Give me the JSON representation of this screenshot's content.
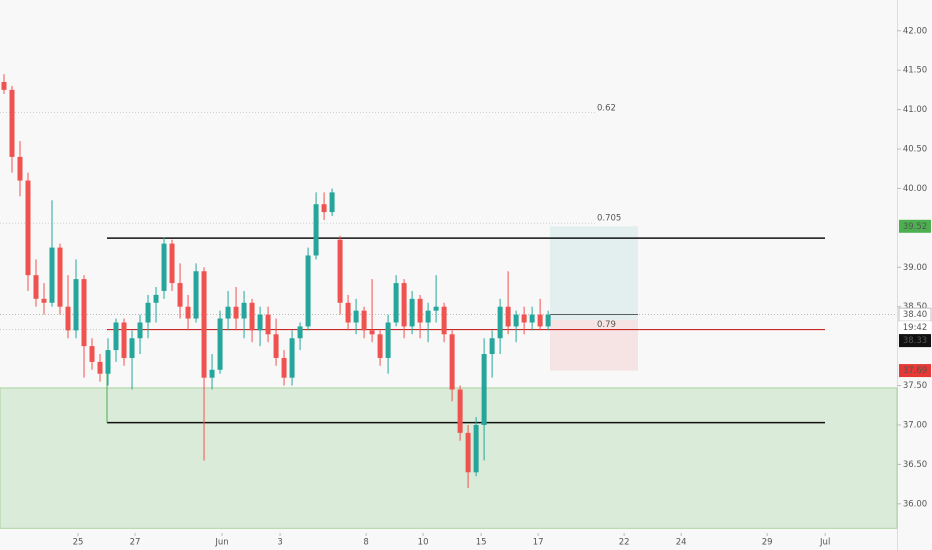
{
  "chart_data": {
    "type": "candlestick",
    "up_color": "#26a69a",
    "down_color": "#ef5350",
    "open": [
      41.35,
      41.25,
      40.4,
      40.1,
      38.9,
      38.6,
      38.55,
      39.25,
      38.5,
      38.2,
      38.85,
      38.0,
      37.8,
      37.65,
      37.95,
      38.3,
      37.85,
      38.1,
      38.3,
      38.55,
      38.7,
      39.3,
      38.8,
      38.5,
      38.35,
      38.95,
      37.6,
      37.7,
      38.35,
      38.5,
      38.35,
      38.55,
      38.2,
      38.4,
      38.15,
      37.85,
      37.6,
      38.1,
      38.25,
      39.15,
      39.8,
      39.7,
      39.35,
      38.55,
      38.3,
      38.45,
      38.2,
      38.15,
      37.85,
      38.3,
      38.8,
      38.25,
      38.6,
      38.3,
      38.45,
      38.5,
      38.15,
      37.45,
      36.9,
      36.4,
      37.0,
      37.9,
      38.1,
      38.5,
      38.25,
      38.4,
      38.3,
      38.4,
      38.25
    ],
    "high": [
      41.45,
      41.3,
      40.6,
      40.2,
      39.1,
      38.8,
      39.85,
      39.3,
      38.9,
      39.1,
      38.9,
      38.1,
      37.9,
      38.1,
      38.35,
      38.35,
      38.2,
      38.4,
      38.65,
      38.75,
      39.38,
      39.35,
      39.05,
      38.65,
      39.05,
      39.0,
      37.9,
      38.45,
      38.7,
      38.75,
      38.7,
      38.6,
      38.5,
      38.5,
      38.35,
      37.95,
      38.2,
      38.3,
      39.25,
      39.95,
      39.95,
      40.0,
      39.4,
      38.65,
      38.6,
      38.5,
      38.85,
      38.2,
      38.4,
      38.9,
      38.85,
      38.7,
      38.65,
      38.55,
      38.9,
      38.55,
      38.2,
      37.5,
      37.0,
      37.1,
      38.1,
      38.2,
      38.6,
      38.95,
      38.45,
      38.5,
      38.5,
      38.6,
      38.45
    ],
    "low": [
      41.2,
      40.2,
      39.9,
      38.7,
      38.5,
      38.4,
      38.5,
      38.4,
      38.1,
      38.1,
      37.6,
      37.7,
      37.55,
      37.5,
      37.8,
      37.75,
      37.45,
      37.9,
      38.1,
      38.3,
      38.6,
      38.7,
      38.35,
      38.2,
      38.3,
      36.55,
      37.45,
      37.65,
      38.2,
      38.2,
      38.1,
      38.05,
      38.0,
      38.05,
      37.75,
      37.5,
      37.5,
      37.95,
      38.2,
      39.1,
      39.6,
      39.65,
      38.4,
      38.2,
      38.15,
      38.1,
      38.05,
      37.75,
      37.65,
      38.25,
      38.1,
      38.15,
      38.1,
      38.05,
      38.3,
      38.05,
      37.3,
      36.8,
      36.2,
      36.35,
      36.55,
      37.6,
      37.9,
      38.15,
      38.05,
      38.15,
      38.2,
      38.2,
      38.2
    ],
    "close": [
      41.25,
      40.4,
      40.1,
      38.9,
      38.6,
      38.55,
      39.25,
      38.5,
      38.2,
      38.85,
      38.0,
      37.8,
      37.65,
      37.95,
      38.3,
      37.85,
      38.1,
      38.3,
      38.55,
      38.65,
      39.3,
      38.8,
      38.5,
      38.35,
      38.95,
      37.6,
      37.7,
      38.35,
      38.5,
      38.35,
      38.55,
      38.2,
      38.4,
      38.15,
      37.85,
      37.6,
      38.1,
      38.25,
      39.15,
      39.8,
      39.7,
      39.95,
      38.55,
      38.3,
      38.45,
      38.2,
      38.15,
      37.85,
      38.3,
      38.8,
      38.25,
      38.6,
      38.3,
      38.45,
      38.5,
      38.15,
      37.45,
      36.9,
      36.4,
      37.0,
      37.9,
      38.1,
      38.5,
      38.25,
      38.4,
      38.3,
      38.4,
      38.25,
      38.4
    ],
    "xlim": [
      -0.5,
      111.6
    ],
    "xticks": [
      {
        "value": 9.25,
        "label": "25"
      },
      {
        "value": 16.375,
        "label": "27"
      },
      {
        "value": 27.25,
        "label": "Jun"
      },
      {
        "value": 34.5,
        "label": "3"
      },
      {
        "value": 45.25,
        "label": "8"
      },
      {
        "value": 52.375,
        "label": "10"
      },
      {
        "value": 59.625,
        "label": "15"
      },
      {
        "value": 66.75,
        "label": "17"
      },
      {
        "value": 77.5,
        "label": "22"
      },
      {
        "value": 84.625,
        "label": "24"
      },
      {
        "value": 95.375,
        "label": "29"
      },
      {
        "value": 102.625,
        "label": "Jul"
      }
    ],
    "ylim": [
      35.63,
      42.39
    ],
    "yticks": [
      {
        "value": 42,
        "label": "42.00"
      },
      {
        "value": 41.5,
        "label": "41.50"
      },
      {
        "value": 41,
        "label": "41.00"
      },
      {
        "value": 40.5,
        "label": "40.50"
      },
      {
        "value": 40,
        "label": "40.00"
      },
      {
        "value": 39,
        "label": "39.00"
      },
      {
        "value": 38.5,
        "label": "38.50"
      },
      {
        "value": 37.5,
        "label": "37.50"
      },
      {
        "value": 37,
        "label": "37.00"
      },
      {
        "value": 36.5,
        "label": "36.50"
      },
      {
        "value": 36,
        "label": "36.00"
      }
    ],
    "fib_levels": [
      {
        "label": "0.62",
        "value": 40.96
      },
      {
        "label": "0.705",
        "value": 39.56
      },
      {
        "label": "0.79",
        "value": 38.21
      }
    ],
    "range_lines": [
      39.37,
      37.03
    ],
    "support_line": 38.21,
    "demand_zone": [
      35.69,
      37.47
    ],
    "position": {
      "target": 39.52,
      "entry": 38.33,
      "stop": 37.69
    },
    "last_price": {
      "value": 38.4,
      "label": "38.40"
    },
    "countdown": "19:42"
  }
}
